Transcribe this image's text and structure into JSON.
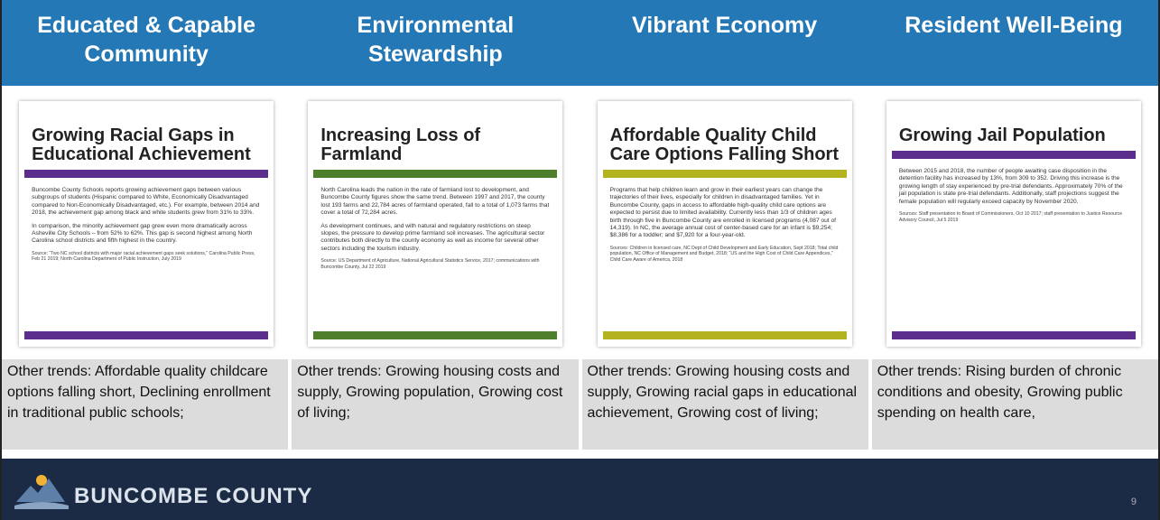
{
  "columns": [
    {
      "heading": "Educated & Capable Community",
      "card": {
        "title": "Growing Racial Gaps in Educational Achievement",
        "paragraphs": [
          "Buncombe County Schools reports growing achievement gaps between various subgroups of students (Hispanic compared to White, Economically Disadvantaged compared to Non-Economically Disadvantaged, etc.). For example, between 2014 and 2018, the achievement gap among black and white students grew from 31% to 33%.",
          "In comparison, the minority achievement gap grew even more dramatically across Asheville City Schools – from 52% to 62%. This gap is second highest among North Carolina school districts and fifth highest in the country."
        ],
        "source": "Source: “Two NC school districts with major racial achievement gaps seek solutions,” Carolina Public Press, Feb 21 2019; North Carolina Department of Public Instruction, July 2019",
        "color": "#5b2d8c"
      },
      "trends": "Other trends: Affordable quality childcare options falling short, Declining enrollment in traditional public schools;"
    },
    {
      "heading": "Environmental Stewardship",
      "card": {
        "title": "Increasing Loss of Farmland",
        "paragraphs": [
          "North Carolina leads the nation in the rate of farmland lost to development, and Buncombe County figures show the same trend. Between 1997 and 2017, the county lost 193 farms and 22,784 acres of farmland operated, fall to a total of 1,073 farms that cover a total of 72,284 acres.",
          "As development continues, and with natural and regulatory restrictions on steep slopes, the pressure to develop prime farmland soil increases. The agricultural sector contributes both directly to the county economy as well as income for several other sectors including the tourism industry."
        ],
        "source": "Source: US Department of Agriculture, National Agricultural Statistics Service, 2017; communications with Buncombe County, Jul 22 2019",
        "color": "#4e7f2b"
      },
      "trends": "Other trends: Growing housing costs and supply, Growing population, Growing cost of living;"
    },
    {
      "heading": "Vibrant Economy",
      "card": {
        "title": "Affordable Quality Child Care Options Falling Short",
        "paragraphs": [
          "Programs that help children learn and grow in their earliest years can change the trajectories of their lives, especially for children in disadvantaged families. Yet in Buncombe County, gaps in access to affordable high-quality child care options are expected to persist due to limited availability. Currently less than 1/3 of children ages birth through five in Buncombe County are enrolled in licensed programs (4,087 out of 14,319). In NC, the average annual cost of center-based care for an infant is $9,254; $8,386 for a toddler; and $7,920 for a four-year-old."
        ],
        "source": "Sources: Children in licensed care, NC Dept of Child Development and Early Education, Sept 2018; Total child population, NC Office of Management and Budget, 2018; “US and the High Cost of Child Care Appendices,” Child Care Aware of America, 2018",
        "color": "#b3b31f"
      },
      "trends": "Other trends: Growing housing costs and supply, Growing racial gaps in educational achievement, Growing cost of living;"
    },
    {
      "heading": "Resident Well-Being",
      "card": {
        "title": "Growing Jail Population",
        "paragraphs": [
          "Between 2015 and 2018, the number of people awaiting case disposition in the detention facility has increased by 13%, from 309 to 352. Driving this increase is the growing length of stay experienced by pre-trial defendants. Approximately 70% of the jail population is state pre-trial defendants. Additionally, staff projections suggest the female population will regularly exceed capacity by November 2020."
        ],
        "source": "Sources: Staff presentation to Board of Commissioners, Oct 10 2017; staff presentation to Justice Resource Advisory Council, Jul 5 2019",
        "color": "#5b2d8c"
      },
      "trends": "Other trends: Rising burden of chronic conditions and obesity, Growing public spending on health care,"
    }
  ],
  "footer": {
    "brand": "BUNCOMBE COUNTY",
    "page": "9"
  }
}
